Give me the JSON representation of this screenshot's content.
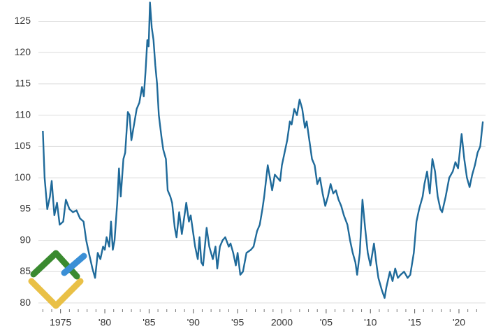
{
  "chart_data": {
    "type": "line",
    "color": "#1f6a9a",
    "grid": true,
    "xlim": [
      1972.5,
      2023
    ],
    "ylim": [
      79,
      128
    ],
    "yticks": [
      80,
      85,
      90,
      95,
      100,
      105,
      110,
      115,
      120,
      125
    ],
    "xticks": [
      1975,
      {
        "value": 1980,
        "label": "'80"
      },
      {
        "value": 1985,
        "label": "'85"
      },
      {
        "value": 1990,
        "label": "'90"
      },
      {
        "value": 1995,
        "label": "'95"
      },
      2000,
      {
        "value": 2005,
        "label": "'05"
      },
      {
        "value": 2010,
        "label": "'10"
      },
      {
        "value": 2015,
        "label": "'15"
      },
      {
        "value": 2020,
        "label": "'20"
      }
    ],
    "minor_xticks": [
      1973,
      1974,
      1976,
      1977,
      1978,
      1979,
      1981,
      1982,
      1983,
      1984,
      1986,
      1987,
      1988,
      1989,
      1991,
      1992,
      1993,
      1994,
      1996,
      1997,
      1998,
      1999,
      2001,
      2002,
      2003,
      2004,
      2006,
      2007,
      2008,
      2009,
      2011,
      2012,
      2013,
      2014,
      2016,
      2017,
      2018,
      2019,
      2021,
      2022
    ],
    "x": [
      1973.0,
      1973.2,
      1973.5,
      1973.8,
      1974.0,
      1974.3,
      1974.6,
      1974.9,
      1975.3,
      1975.6,
      1976.0,
      1976.4,
      1976.8,
      1977.2,
      1977.6,
      1977.9,
      1978.2,
      1978.6,
      1978.9,
      1979.2,
      1979.5,
      1979.8,
      1980.0,
      1980.2,
      1980.5,
      1980.7,
      1980.9,
      1981.1,
      1981.4,
      1981.6,
      1981.8,
      1982.1,
      1982.3,
      1982.6,
      1982.8,
      1983.0,
      1983.3,
      1983.6,
      1983.9,
      1984.2,
      1984.4,
      1984.6,
      1984.8,
      1984.95,
      1985.1,
      1985.3,
      1985.5,
      1985.7,
      1985.9,
      1986.1,
      1986.4,
      1986.6,
      1986.9,
      1987.1,
      1987.4,
      1987.6,
      1987.9,
      1988.1,
      1988.4,
      1988.7,
      1988.8,
      1989.2,
      1989.5,
      1989.7,
      1989.9,
      1990.2,
      1990.5,
      1990.7,
      1990.9,
      1991.1,
      1991.5,
      1991.8,
      1992.2,
      1992.5,
      1992.7,
      1993.0,
      1993.3,
      1993.6,
      1994.0,
      1994.2,
      1994.5,
      1994.8,
      1995.0,
      1995.3,
      1995.6,
      1996.0,
      1996.5,
      1996.8,
      1997.2,
      1997.5,
      1997.8,
      1998.0,
      1998.4,
      1998.9,
      1999.2,
      1999.5,
      1999.8,
      2000.0,
      2000.3,
      2000.6,
      2000.9,
      2001.1,
      2001.4,
      2001.7,
      2002.0,
      2002.3,
      2002.6,
      2002.8,
      2003.1,
      2003.4,
      2003.7,
      2004.0,
      2004.3,
      2004.6,
      2004.9,
      2005.2,
      2005.5,
      2005.8,
      2006.1,
      2006.4,
      2006.7,
      2007.0,
      2007.4,
      2007.7,
      2008.0,
      2008.3,
      2008.5,
      2008.8,
      2009.1,
      2009.4,
      2009.7,
      2010.0,
      2010.4,
      2010.7,
      2010.9,
      2011.3,
      2011.6,
      2011.8,
      2012.2,
      2012.5,
      2012.8,
      2013.1,
      2013.4,
      2013.8,
      2014.2,
      2014.5,
      2014.9,
      2015.2,
      2015.5,
      2015.9,
      2016.1,
      2016.4,
      2016.7,
      2017.0,
      2017.3,
      2017.6,
      2017.9,
      2018.1,
      2018.5,
      2018.9,
      2019.3,
      2019.6,
      2019.9,
      2020.3,
      2020.6,
      2020.9,
      2021.2,
      2021.5,
      2021.8,
      2022.1,
      2022.4,
      2022.7
    ],
    "values": [
      107.5,
      100,
      95,
      97,
      99.5,
      94,
      96,
      92.5,
      93,
      96.5,
      95,
      94.5,
      94.8,
      93.5,
      93,
      90,
      88,
      85.5,
      84,
      88,
      87,
      89,
      88.5,
      90.5,
      89,
      93,
      88.5,
      90,
      96,
      101.5,
      97,
      103,
      104,
      110.5,
      110,
      106,
      108.5,
      111,
      112,
      114.5,
      113,
      117,
      122,
      121,
      128,
      124,
      122,
      118,
      115,
      110,
      106.5,
      104.5,
      103,
      98,
      97,
      96,
      92,
      90.5,
      94.5,
      91,
      92,
      96,
      93,
      94,
      92,
      89,
      87,
      90.5,
      86.5,
      86,
      92,
      89,
      87,
      89,
      85.5,
      89,
      90,
      90.5,
      89,
      89.5,
      88,
      86,
      88,
      84.5,
      85,
      88,
      88.5,
      89,
      91.5,
      92.5,
      95,
      97,
      102,
      98,
      100.5,
      100,
      99.5,
      102,
      104,
      106,
      109,
      108.5,
      111,
      110,
      112.5,
      111,
      108,
      109,
      106,
      103,
      102,
      99,
      100,
      97.5,
      95.5,
      97,
      99,
      97.5,
      98,
      96.5,
      95.5,
      94,
      92.5,
      90,
      88,
      86.5,
      84.5,
      88,
      96.5,
      92,
      88,
      86,
      89.5,
      86,
      84,
      82,
      80.8,
      82.5,
      85,
      83.5,
      85.5,
      84,
      84.5,
      85,
      84,
      84.5,
      88,
      93,
      95,
      97,
      99,
      101,
      97.5,
      103,
      101,
      97,
      95,
      94.5,
      97,
      100,
      101,
      102.5,
      101.5,
      107,
      103,
      100,
      98.5,
      100.5,
      102,
      104,
      105,
      109
    ]
  }
}
